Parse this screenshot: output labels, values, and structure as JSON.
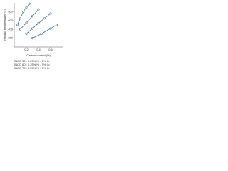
{
  "chart_data": {
    "type": "scatter",
    "x_label": "Carbon content(%)",
    "y_label": "Holding temperature(°C)",
    "xlim": [
      0,
      0.8
    ],
    "xticks": [
      0.2,
      0.4,
      0.6
    ],
    "ylim": [
      0,
      1000
    ],
    "yticks": [
      200,
      400,
      600,
      800
    ],
    "color": "#3b6ea5",
    "series": [
      {
        "x": [
          0.05,
          0.1,
          0.15,
          0.2,
          0.25
        ],
        "values": [
          500,
          650,
          800,
          900,
          980
        ]
      },
      {
        "x": [
          0.1,
          0.2,
          0.3,
          0.4
        ],
        "values": [
          400,
          550,
          700,
          850
        ]
      },
      {
        "x": [
          0.2,
          0.3,
          0.4,
          0.5,
          0.6
        ],
        "values": [
          300,
          420,
          540,
          650,
          760
        ]
      },
      {
        "x": [
          0.3,
          0.45,
          0.6,
          0.7
        ],
        "values": [
          200,
          300,
          420,
          500
        ]
      }
    ],
    "notes": [
      "INCO 50 : 0.25% Ni - 7% Cr",
      "INCO 60 : 0.25% Ni - 7% Cr",
      "INCO 70 : 0.25% Ni - 7% Cr"
    ]
  }
}
